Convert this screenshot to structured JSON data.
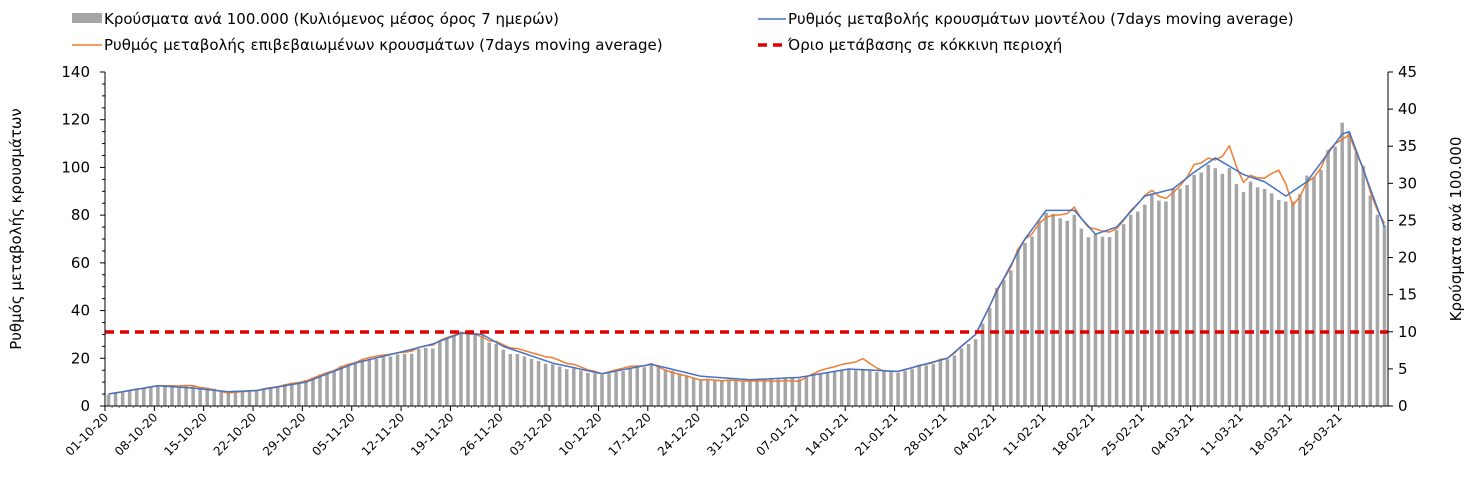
{
  "chart_data": {
    "type": "bar+line",
    "title": "",
    "ylabel_left": "Ρυθμός μεταβολής κρουσμάτων",
    "ylabel_right": "Κρούσματα ανά 100.000",
    "ylim_left": [
      0,
      140
    ],
    "ylim_right": [
      0,
      45
    ],
    "yticks_left": [
      0,
      20,
      40,
      60,
      80,
      100,
      120,
      140
    ],
    "yticks_right": [
      0,
      5,
      10,
      15,
      20,
      25,
      30,
      35,
      40,
      45
    ],
    "x_start": "2020-10-01",
    "x_end": "2021-03-31",
    "xtick_labels": [
      "01-10-20",
      "08-10-20",
      "15-10-20",
      "22-10-20",
      "29-10-20",
      "05-11-20",
      "12-11-20",
      "19-11-20",
      "26-11-20",
      "03-12-20",
      "10-12-20",
      "17-12-20",
      "24-12-20",
      "31-12-20",
      "07-01-21",
      "14-01-21",
      "21-01-21",
      "28-01-21",
      "04-02-21",
      "11-02-21",
      "18-02-21",
      "25-02-21",
      "04-03-21",
      "11-03-21",
      "18-03-21",
      "25-03-21"
    ],
    "legend_position": "top",
    "grid": false,
    "colors": {
      "bars": "#a6a6a6",
      "model": "#4472c4",
      "confirmed": "#ed7d31",
      "threshold": "#e00000"
    },
    "series": [
      {
        "name": "Κρούσματα ανά 100.000 (Κυλιόμενος μέσος όρος 7 ημερών)",
        "kind": "bar",
        "axis": "right",
        "keypoints": [
          [
            "2020-10-01",
            1.5
          ],
          [
            "2020-10-08",
            2.8
          ],
          [
            "2020-10-13",
            2.7
          ],
          [
            "2020-10-18",
            2.0
          ],
          [
            "2020-10-22",
            2.1
          ],
          [
            "2020-10-29",
            3.5
          ],
          [
            "2020-11-05",
            6.0
          ],
          [
            "2020-11-12",
            7.0
          ],
          [
            "2020-11-16",
            8.0
          ],
          [
            "2020-11-20",
            10.0
          ],
          [
            "2020-11-23",
            9.5
          ],
          [
            "2020-11-26",
            7.5
          ],
          [
            "2020-12-03",
            5.5
          ],
          [
            "2020-12-10",
            4.2
          ],
          [
            "2020-12-17",
            5.6
          ],
          [
            "2020-12-24",
            3.5
          ],
          [
            "2020-12-31",
            3.5
          ],
          [
            "2021-01-07",
            3.8
          ],
          [
            "2021-01-14",
            5.0
          ],
          [
            "2021-01-21",
            4.5
          ],
          [
            "2021-01-28",
            6.3
          ],
          [
            "2021-02-01",
            9.0
          ],
          [
            "2021-02-04",
            15.5
          ],
          [
            "2021-02-08",
            22.0
          ],
          [
            "2021-02-11",
            26.0
          ],
          [
            "2021-02-15",
            25.0
          ],
          [
            "2021-02-18",
            22.5
          ],
          [
            "2021-02-21",
            23.5
          ],
          [
            "2021-02-25",
            27.5
          ],
          [
            "2021-03-01",
            28.5
          ],
          [
            "2021-03-04",
            31.0
          ],
          [
            "2021-03-07",
            32.5
          ],
          [
            "2021-03-11",
            29.5
          ],
          [
            "2021-03-14",
            29.5
          ],
          [
            "2021-03-17",
            27.0
          ],
          [
            "2021-03-20",
            30.0
          ],
          [
            "2021-03-24",
            35.0
          ],
          [
            "2021-03-25",
            38.3
          ],
          [
            "2021-03-26",
            37.0
          ],
          [
            "2021-03-31",
            23.5
          ]
        ]
      },
      {
        "name": "Ρυθμός μεταβολής κρουσμάτων μοντέλου (7days moving average)",
        "kind": "line",
        "axis": "left",
        "keypoints": [
          [
            "2020-10-01",
            5
          ],
          [
            "2020-10-08",
            8.5
          ],
          [
            "2020-10-13",
            7.5
          ],
          [
            "2020-10-18",
            6
          ],
          [
            "2020-10-22",
            6.5
          ],
          [
            "2020-10-29",
            10
          ],
          [
            "2020-11-05",
            18
          ],
          [
            "2020-11-12",
            23
          ],
          [
            "2020-11-16",
            26
          ],
          [
            "2020-11-20",
            30.5
          ],
          [
            "2020-11-23",
            30
          ],
          [
            "2020-11-26",
            25
          ],
          [
            "2020-12-03",
            18
          ],
          [
            "2020-12-10",
            13.5
          ],
          [
            "2020-12-17",
            17.5
          ],
          [
            "2020-12-24",
            12.5
          ],
          [
            "2020-12-31",
            11
          ],
          [
            "2021-01-07",
            12
          ],
          [
            "2021-01-14",
            15.5
          ],
          [
            "2021-01-21",
            14.5
          ],
          [
            "2021-01-28",
            20
          ],
          [
            "2021-02-01",
            30
          ],
          [
            "2021-02-04",
            48
          ],
          [
            "2021-02-08",
            70
          ],
          [
            "2021-02-11",
            82
          ],
          [
            "2021-02-15",
            82
          ],
          [
            "2021-02-18",
            72
          ],
          [
            "2021-02-21",
            75
          ],
          [
            "2021-02-25",
            88
          ],
          [
            "2021-03-01",
            91
          ],
          [
            "2021-03-04",
            98
          ],
          [
            "2021-03-07",
            104
          ],
          [
            "2021-03-11",
            97
          ],
          [
            "2021-03-14",
            94
          ],
          [
            "2021-03-17",
            88
          ],
          [
            "2021-03-20",
            94
          ],
          [
            "2021-03-24",
            110
          ],
          [
            "2021-03-25",
            114
          ],
          [
            "2021-03-26",
            115
          ],
          [
            "2021-03-31",
            75
          ]
        ]
      },
      {
        "name": "Ρυθμός μεταβολής επιβεβαιωμένων κρουσμάτων (7days moving average)",
        "kind": "line",
        "axis": "left",
        "keypoints": [
          [
            "2020-10-01",
            5
          ],
          [
            "2020-10-08",
            8.5
          ],
          [
            "2020-10-13",
            8.5
          ],
          [
            "2020-10-18",
            5.5
          ],
          [
            "2020-10-22",
            6.5
          ],
          [
            "2020-10-29",
            10.5
          ],
          [
            "2020-11-05",
            18.5
          ],
          [
            "2020-11-08",
            21
          ],
          [
            "2020-11-12",
            22.5
          ],
          [
            "2020-11-16",
            26
          ],
          [
            "2020-11-20",
            31
          ],
          [
            "2020-11-23",
            29
          ],
          [
            "2020-11-26",
            25.5
          ],
          [
            "2020-12-03",
            20
          ],
          [
            "2020-12-10",
            13.5
          ],
          [
            "2020-12-13",
            16
          ],
          [
            "2020-12-17",
            17.5
          ],
          [
            "2020-12-20",
            14
          ],
          [
            "2020-12-24",
            11
          ],
          [
            "2020-12-31",
            10.5
          ],
          [
            "2021-01-07",
            10.5
          ],
          [
            "2021-01-10",
            15
          ],
          [
            "2021-01-14",
            18
          ],
          [
            "2021-01-16",
            19.5
          ],
          [
            "2021-01-19",
            14.5
          ],
          [
            "2021-01-21",
            14.5
          ],
          [
            "2021-01-28",
            20
          ],
          [
            "2021-02-01",
            30
          ],
          [
            "2021-02-04",
            48
          ],
          [
            "2021-02-08",
            70
          ],
          [
            "2021-02-11",
            79
          ],
          [
            "2021-02-15",
            82
          ],
          [
            "2021-02-18",
            73
          ],
          [
            "2021-02-21",
            74
          ],
          [
            "2021-02-25",
            89
          ],
          [
            "2021-03-01",
            88
          ],
          [
            "2021-03-04",
            101
          ],
          [
            "2021-03-07",
            104
          ],
          [
            "2021-03-09",
            107
          ],
          [
            "2021-03-11",
            95
          ],
          [
            "2021-03-14",
            96
          ],
          [
            "2021-03-16",
            99
          ],
          [
            "2021-03-18",
            85
          ],
          [
            "2021-03-20",
            92
          ],
          [
            "2021-03-24",
            110
          ],
          [
            "2021-03-26",
            114
          ],
          [
            "2021-03-31",
            75
          ]
        ]
      },
      {
        "name": "Όριο μετάβασης σε κόκκινη περιοχή",
        "kind": "hline",
        "axis": "left",
        "value": 31
      }
    ]
  }
}
